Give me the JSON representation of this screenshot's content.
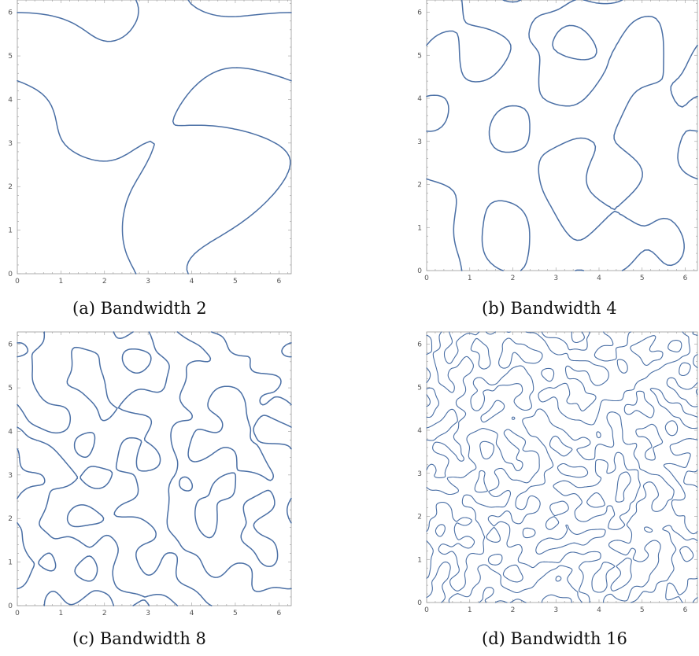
{
  "accent": "#4a6fa5",
  "chart_data": [
    {
      "type": "contour",
      "caption": "(a) Bandwidth 2",
      "bandwidth": 2,
      "xlim": [
        0,
        6.2832
      ],
      "ylim": [
        0,
        6.2832
      ],
      "x_ticks": [
        "0",
        "1",
        "2",
        "3",
        "4",
        "5",
        "6"
      ],
      "y_ticks": [
        "0",
        "1",
        "2",
        "3",
        "4",
        "5",
        "6"
      ],
      "grid": false,
      "seed": 11
    },
    {
      "type": "contour",
      "caption": "(b) Bandwidth 4",
      "bandwidth": 4,
      "xlim": [
        0,
        6.2832
      ],
      "ylim": [
        0,
        6.2832
      ],
      "x_ticks": [
        "0",
        "1",
        "2",
        "3",
        "4",
        "5",
        "6"
      ],
      "y_ticks": [
        "0",
        "1",
        "2",
        "3",
        "4",
        "5",
        "6"
      ],
      "grid": false,
      "seed": 23
    },
    {
      "type": "contour",
      "caption": "(c) Bandwidth 8",
      "bandwidth": 8,
      "xlim": [
        0,
        6.2832
      ],
      "ylim": [
        0,
        6.2832
      ],
      "x_ticks": [
        "0",
        "1",
        "2",
        "3",
        "4",
        "5",
        "6"
      ],
      "y_ticks": [
        "0",
        "1",
        "2",
        "3",
        "4",
        "5",
        "6"
      ],
      "grid": false,
      "seed": 37
    },
    {
      "type": "contour",
      "caption": "(d) Bandwidth 16",
      "bandwidth": 16,
      "xlim": [
        0,
        6.2832
      ],
      "ylim": [
        0,
        6.2832
      ],
      "x_ticks": [
        "0",
        "1",
        "2",
        "3",
        "4",
        "5",
        "6"
      ],
      "y_ticks": [
        "0",
        "1",
        "2",
        "3",
        "4",
        "5",
        "6"
      ],
      "grid": false,
      "seed": 53
    }
  ]
}
